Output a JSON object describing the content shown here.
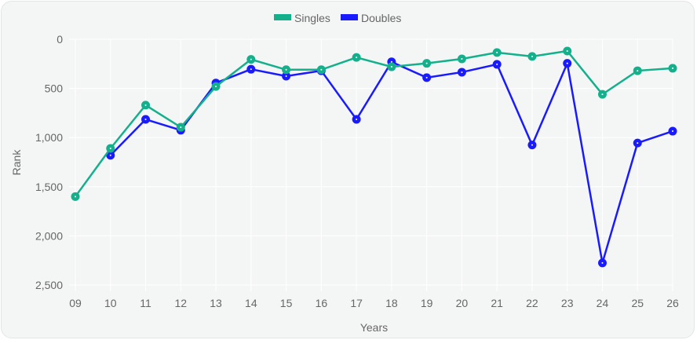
{
  "chart_data": {
    "type": "line",
    "xlabel": "Years",
    "ylabel": "Rank",
    "y_reversed": true,
    "ylim": [
      0,
      2500
    ],
    "yticks": [
      "0",
      "500",
      "1,000",
      "1,500",
      "2,000",
      "2,500"
    ],
    "ytick_values": [
      0,
      500,
      1000,
      1500,
      2000,
      2500
    ],
    "categories": [
      "09",
      "10",
      "11",
      "12",
      "13",
      "14",
      "15",
      "16",
      "17",
      "18",
      "19",
      "20",
      "21",
      "22",
      "23",
      "24",
      "25",
      "26"
    ],
    "grid": true,
    "legend_position": "top",
    "series": [
      {
        "name": "Singles",
        "color": "#13b08b",
        "values": [
          1600,
          1110,
          670,
          895,
          480,
          205,
          310,
          310,
          185,
          280,
          245,
          200,
          135,
          175,
          120,
          560,
          320,
          295
        ]
      },
      {
        "name": "Doubles",
        "color": "#1a1aff",
        "values": [
          null,
          1180,
          815,
          925,
          445,
          305,
          375,
          320,
          815,
          230,
          390,
          335,
          255,
          1075,
          245,
          2275,
          1055,
          935
        ]
      }
    ]
  }
}
